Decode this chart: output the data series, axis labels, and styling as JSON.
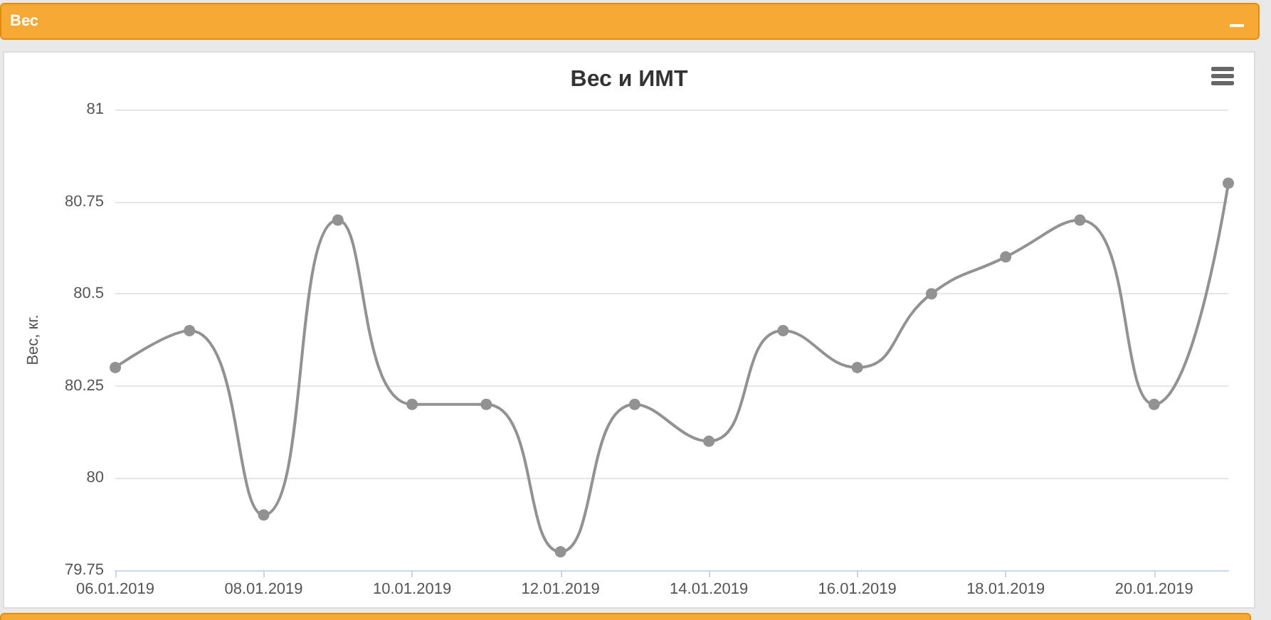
{
  "chart_data": {
    "type": "line",
    "title": "Вес и ИМТ",
    "ylabel": "Вес, кг.",
    "annotations": [
      "Вес"
    ],
    "x": [
      "2019-01-06",
      "2019-01-07",
      "2019-01-08",
      "2019-01-09",
      "2019-01-10",
      "2019-01-11",
      "2019-01-12",
      "2019-01-13",
      "2019-01-14",
      "2019-01-15",
      "2019-01-16",
      "2019-01-17",
      "2019-01-18",
      "2019-01-19",
      "2019-01-20",
      "2019-01-21"
    ],
    "series": [
      {
        "color": "#929292",
        "values": [
          80.3,
          80.4,
          79.9,
          80.7,
          80.2,
          80.2,
          79.8,
          80.2,
          80.1,
          80.4,
          80.3,
          80.5,
          80.6,
          80.7,
          80.2,
          80.8
        ]
      }
    ],
    "xlim": [
      "2019-01-06",
      "2019-01-21"
    ],
    "xticks": [
      {
        "value": "2019-01-06",
        "label": "06.01.2019"
      },
      {
        "value": "2019-01-08",
        "label": "08.01.2019"
      },
      {
        "value": "2019-01-10",
        "label": "10.01.2019"
      },
      {
        "value": "2019-01-12",
        "label": "12.01.2019"
      },
      {
        "value": "2019-01-14",
        "label": "14.01.2019"
      },
      {
        "value": "2019-01-16",
        "label": "16.01.2019"
      },
      {
        "value": "2019-01-18",
        "label": "18.01.2019"
      },
      {
        "value": "2019-01-20",
        "label": "20.01.2019"
      }
    ],
    "ylim": [
      79.75,
      81
    ],
    "yticks": [
      79.75,
      80,
      80.25,
      80.5,
      80.75,
      81
    ],
    "grid": "y",
    "marker": "circle",
    "line_style": "solid"
  }
}
